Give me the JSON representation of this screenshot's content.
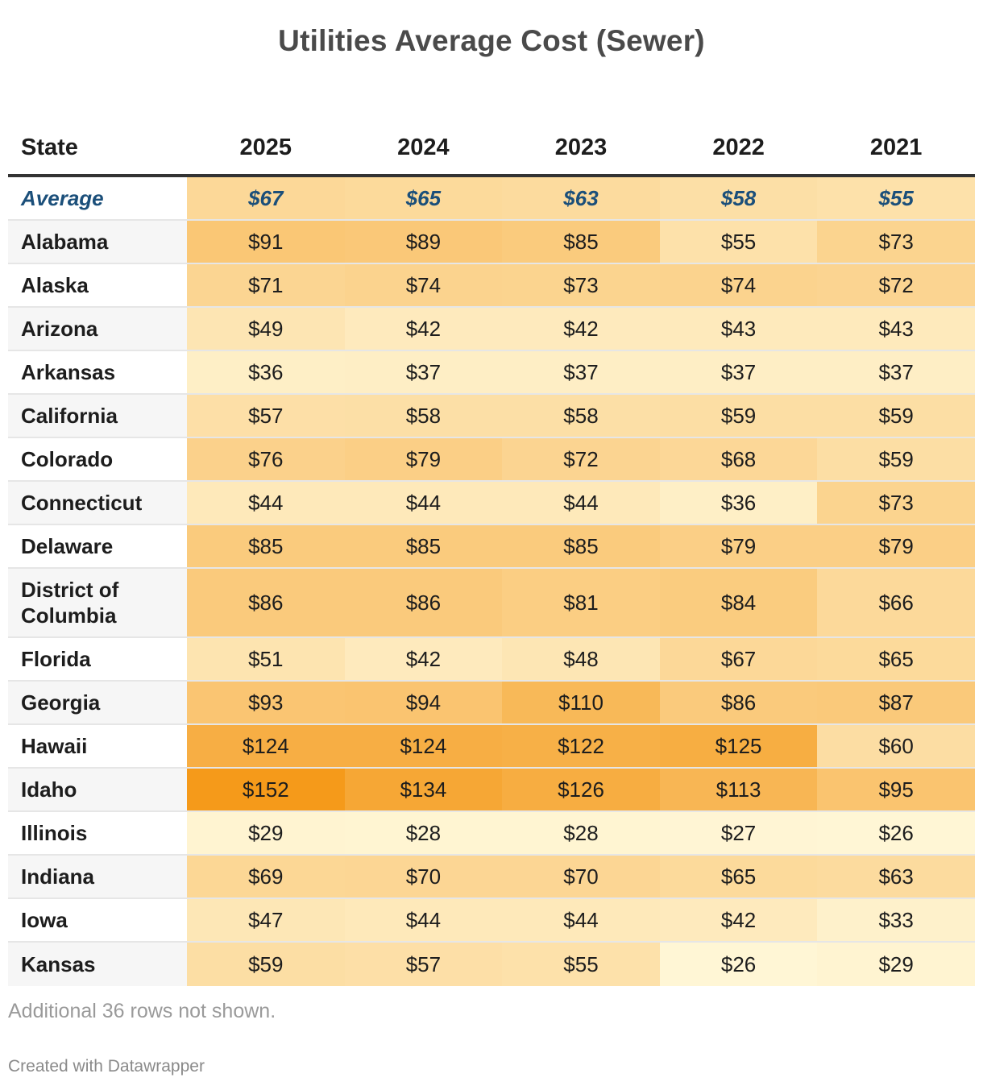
{
  "chart_data": {
    "type": "table",
    "title": "Utilities Average Cost (Sewer)",
    "columns": [
      "State",
      "2025",
      "2024",
      "2023",
      "2022",
      "2021"
    ],
    "color_scale": {
      "min_value": 26,
      "max_value": 152,
      "min_color": "#fff6d5",
      "max_color": "#f59a1a"
    },
    "rows": [
      {
        "state": "Average",
        "values": [
          67,
          65,
          63,
          58,
          55
        ],
        "highlight": true
      },
      {
        "state": "Alabama",
        "values": [
          91,
          89,
          85,
          55,
          73
        ]
      },
      {
        "state": "Alaska",
        "values": [
          71,
          74,
          73,
          74,
          72
        ]
      },
      {
        "state": "Arizona",
        "values": [
          49,
          42,
          42,
          43,
          43
        ]
      },
      {
        "state": "Arkansas",
        "values": [
          36,
          37,
          37,
          37,
          37
        ]
      },
      {
        "state": "California",
        "values": [
          57,
          58,
          58,
          59,
          59
        ]
      },
      {
        "state": "Colorado",
        "values": [
          76,
          79,
          72,
          68,
          59
        ]
      },
      {
        "state": "Connecticut",
        "values": [
          44,
          44,
          44,
          36,
          73
        ]
      },
      {
        "state": "Delaware",
        "values": [
          85,
          85,
          85,
          79,
          79
        ]
      },
      {
        "state": "District of Columbia",
        "values": [
          86,
          86,
          81,
          84,
          66
        ]
      },
      {
        "state": "Florida",
        "values": [
          51,
          42,
          48,
          67,
          65
        ]
      },
      {
        "state": "Georgia",
        "values": [
          93,
          94,
          110,
          86,
          87
        ]
      },
      {
        "state": "Hawaii",
        "values": [
          124,
          124,
          122,
          125,
          60
        ]
      },
      {
        "state": "Idaho",
        "values": [
          152,
          134,
          126,
          113,
          95
        ]
      },
      {
        "state": "Illinois",
        "values": [
          29,
          28,
          28,
          27,
          26
        ]
      },
      {
        "state": "Indiana",
        "values": [
          69,
          70,
          70,
          65,
          63
        ]
      },
      {
        "state": "Iowa",
        "values": [
          47,
          44,
          44,
          42,
          33
        ]
      },
      {
        "state": "Kansas",
        "values": [
          59,
          57,
          55,
          26,
          29
        ]
      }
    ],
    "currency_prefix": "$"
  },
  "note": "Additional 36 rows not shown.",
  "credit": "Created with Datawrapper",
  "colors": {
    "average_text": "#1b4f7a",
    "title_text": "#4a4a4a"
  }
}
